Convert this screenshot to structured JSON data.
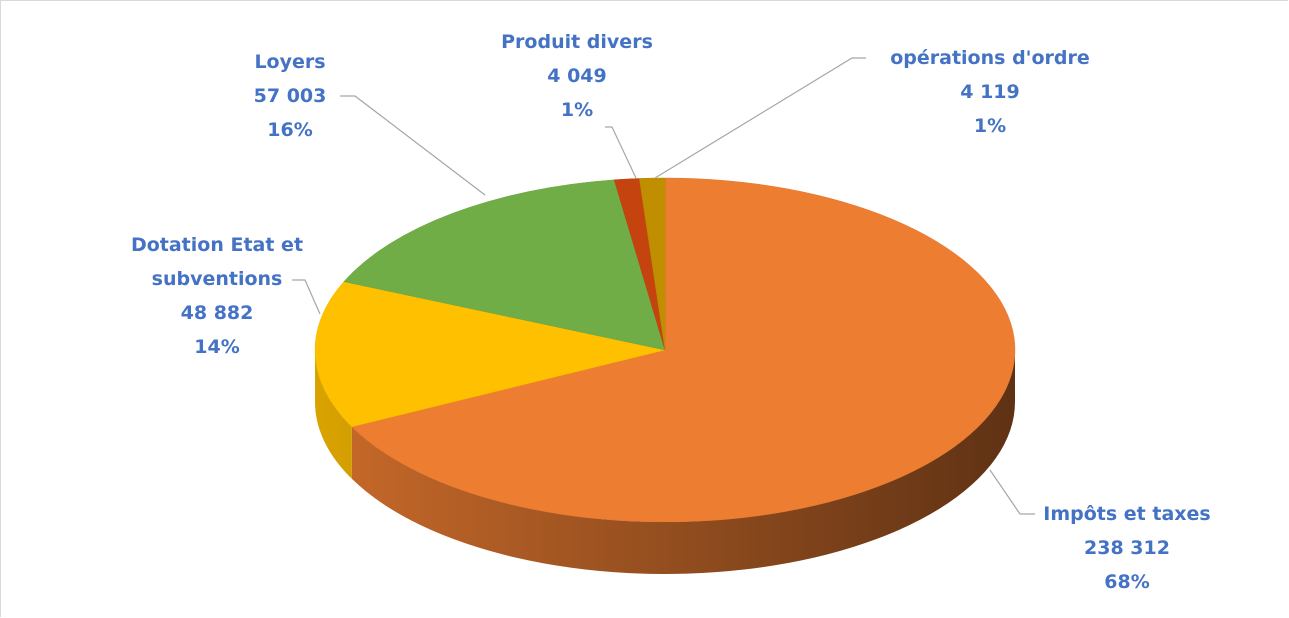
{
  "chart_data": {
    "type": "pie",
    "categories": [
      "Impôts et taxes",
      "Dotation Etat et subventions",
      "Loyers",
      "Produit divers",
      "opérations d'ordre"
    ],
    "values": [
      238312,
      48882,
      57003,
      4049,
      4119
    ],
    "value_labels": [
      "238 312",
      "48 882",
      "57 003",
      "4 049",
      "4 119"
    ],
    "percent_labels": [
      "68%",
      "14%",
      "16%",
      "1%",
      "1%"
    ],
    "colors": [
      "#ed7d31",
      "#ffc000",
      "#70ad47",
      "#c5430f",
      "#bf8f00"
    ]
  }
}
